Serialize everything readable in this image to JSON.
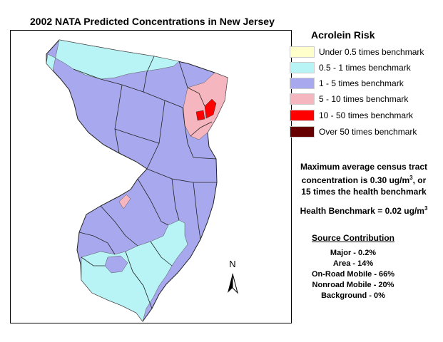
{
  "title": "2002 NATA Predicted Concentrations in New Jersey",
  "legend": {
    "title": "Acrolein Risk",
    "items": [
      {
        "label": "Under 0.5 times benchmark",
        "color": "#ffffcc"
      },
      {
        "label": "0.5 - 1 times benchmark",
        "color": "#b8f4f6"
      },
      {
        "label": "1 - 5 times benchmark",
        "color": "#a8a8ee"
      },
      {
        "label": "5 - 10 times benchmark",
        "color": "#f6b6c0"
      },
      {
        "label": "10 - 50 times benchmark",
        "color": "#ff0000"
      },
      {
        "label": "Over 50 times benchmark",
        "color": "#660000"
      }
    ]
  },
  "info": {
    "max_line1": "Maximum average census tract",
    "max_line2_pre": "concentration is 0.30 ug/m",
    "max_line2_sup": "3",
    "max_line2_post": ", or",
    "max_line3": "15 times the health benchmark",
    "benchmark_pre": "Health Benchmark = 0.02 ug/m",
    "benchmark_sup": "3"
  },
  "source": {
    "title": "Source Contribution",
    "items": [
      "Major - 0.2%",
      "Area - 14%",
      "On-Road Mobile - 66%",
      "Nonroad Mobile - 20%",
      "Background - 0%"
    ]
  },
  "north_label": "N"
}
